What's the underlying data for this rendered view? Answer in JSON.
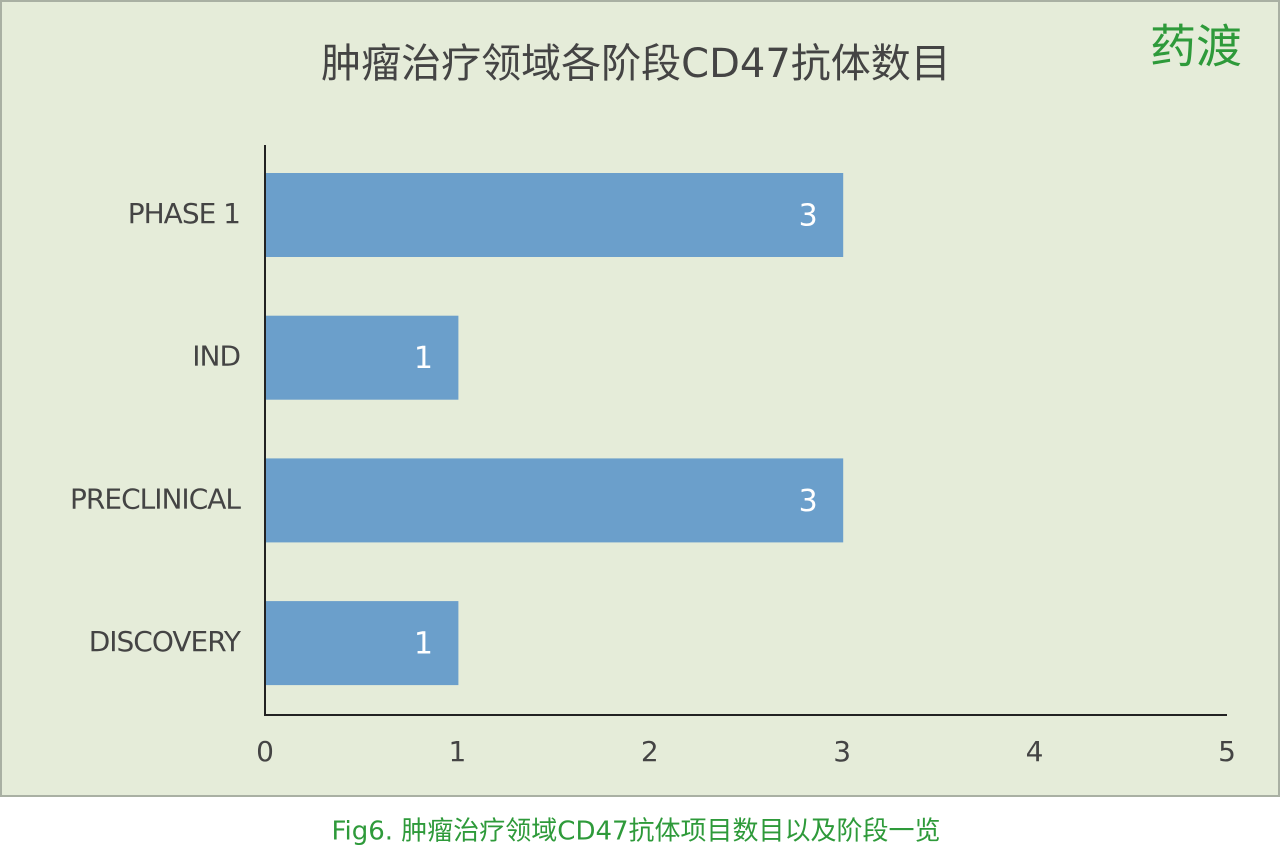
{
  "chart_data": {
    "type": "bar",
    "orientation": "horizontal",
    "title": "肿瘤治疗领域各阶段CD47抗体数目",
    "watermark": "药渡",
    "caption": "Fig6. 肿瘤治疗领域CD47抗体项目数目以及阶段一览",
    "categories": [
      "PHASE 1",
      "IND",
      "PRECLINICAL",
      "DISCOVERY"
    ],
    "values": [
      3,
      1,
      3,
      1
    ],
    "color": "#6b9fcb",
    "xlim": [
      0,
      5
    ],
    "xticks": [
      0,
      1,
      2,
      3,
      4,
      5
    ],
    "data_labels": true,
    "grid": false
  }
}
